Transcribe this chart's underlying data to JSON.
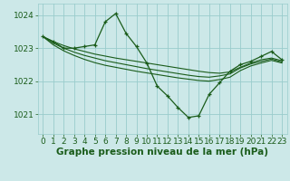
{
  "background_color": "#cce8e8",
  "grid_color": "#99cccc",
  "line_color": "#1a5c1a",
  "marker": "+",
  "xlabel": "Graphe pression niveau de la mer (hPa)",
  "xlabel_fontsize": 7.5,
  "tick_fontsize": 6.5,
  "figsize": [
    3.2,
    2.0
  ],
  "dpi": 100,
  "xlim": [
    -0.5,
    23.5
  ],
  "ylim": [
    1020.4,
    1024.35
  ],
  "yticks": [
    1021,
    1022,
    1023,
    1024
  ],
  "xticks": [
    0,
    1,
    2,
    3,
    4,
    5,
    6,
    7,
    8,
    9,
    10,
    11,
    12,
    13,
    14,
    15,
    16,
    17,
    18,
    19,
    20,
    21,
    22,
    23
  ],
  "series_main": [
    1023.35,
    1023.2,
    1023.0,
    1023.0,
    1023.05,
    1023.1,
    1023.8,
    1024.05,
    1023.45,
    1023.05,
    1022.55,
    1021.85,
    1021.55,
    1021.2,
    1020.9,
    1020.95,
    1021.6,
    1021.95,
    1022.3,
    1022.5,
    1022.6,
    1022.75,
    1022.9,
    1022.65
  ],
  "series_smooth1": [
    1023.35,
    1023.2,
    1023.08,
    1022.98,
    1022.9,
    1022.82,
    1022.76,
    1022.7,
    1022.65,
    1022.6,
    1022.55,
    1022.5,
    1022.45,
    1022.4,
    1022.35,
    1022.3,
    1022.26,
    1022.24,
    1022.28,
    1022.42,
    1022.55,
    1022.65,
    1022.7,
    1022.62
  ],
  "series_smooth2": [
    1023.35,
    1023.15,
    1023.0,
    1022.88,
    1022.78,
    1022.7,
    1022.62,
    1022.56,
    1022.5,
    1022.44,
    1022.38,
    1022.33,
    1022.28,
    1022.23,
    1022.18,
    1022.14,
    1022.12,
    1022.16,
    1022.22,
    1022.4,
    1022.52,
    1022.6,
    1022.67,
    1022.58
  ],
  "series_smooth3": [
    1023.35,
    1023.1,
    1022.92,
    1022.78,
    1022.66,
    1022.56,
    1022.48,
    1022.42,
    1022.36,
    1022.3,
    1022.25,
    1022.2,
    1022.15,
    1022.1,
    1022.06,
    1022.02,
    1022.0,
    1022.05,
    1022.12,
    1022.32,
    1022.46,
    1022.55,
    1022.63,
    1022.55
  ]
}
